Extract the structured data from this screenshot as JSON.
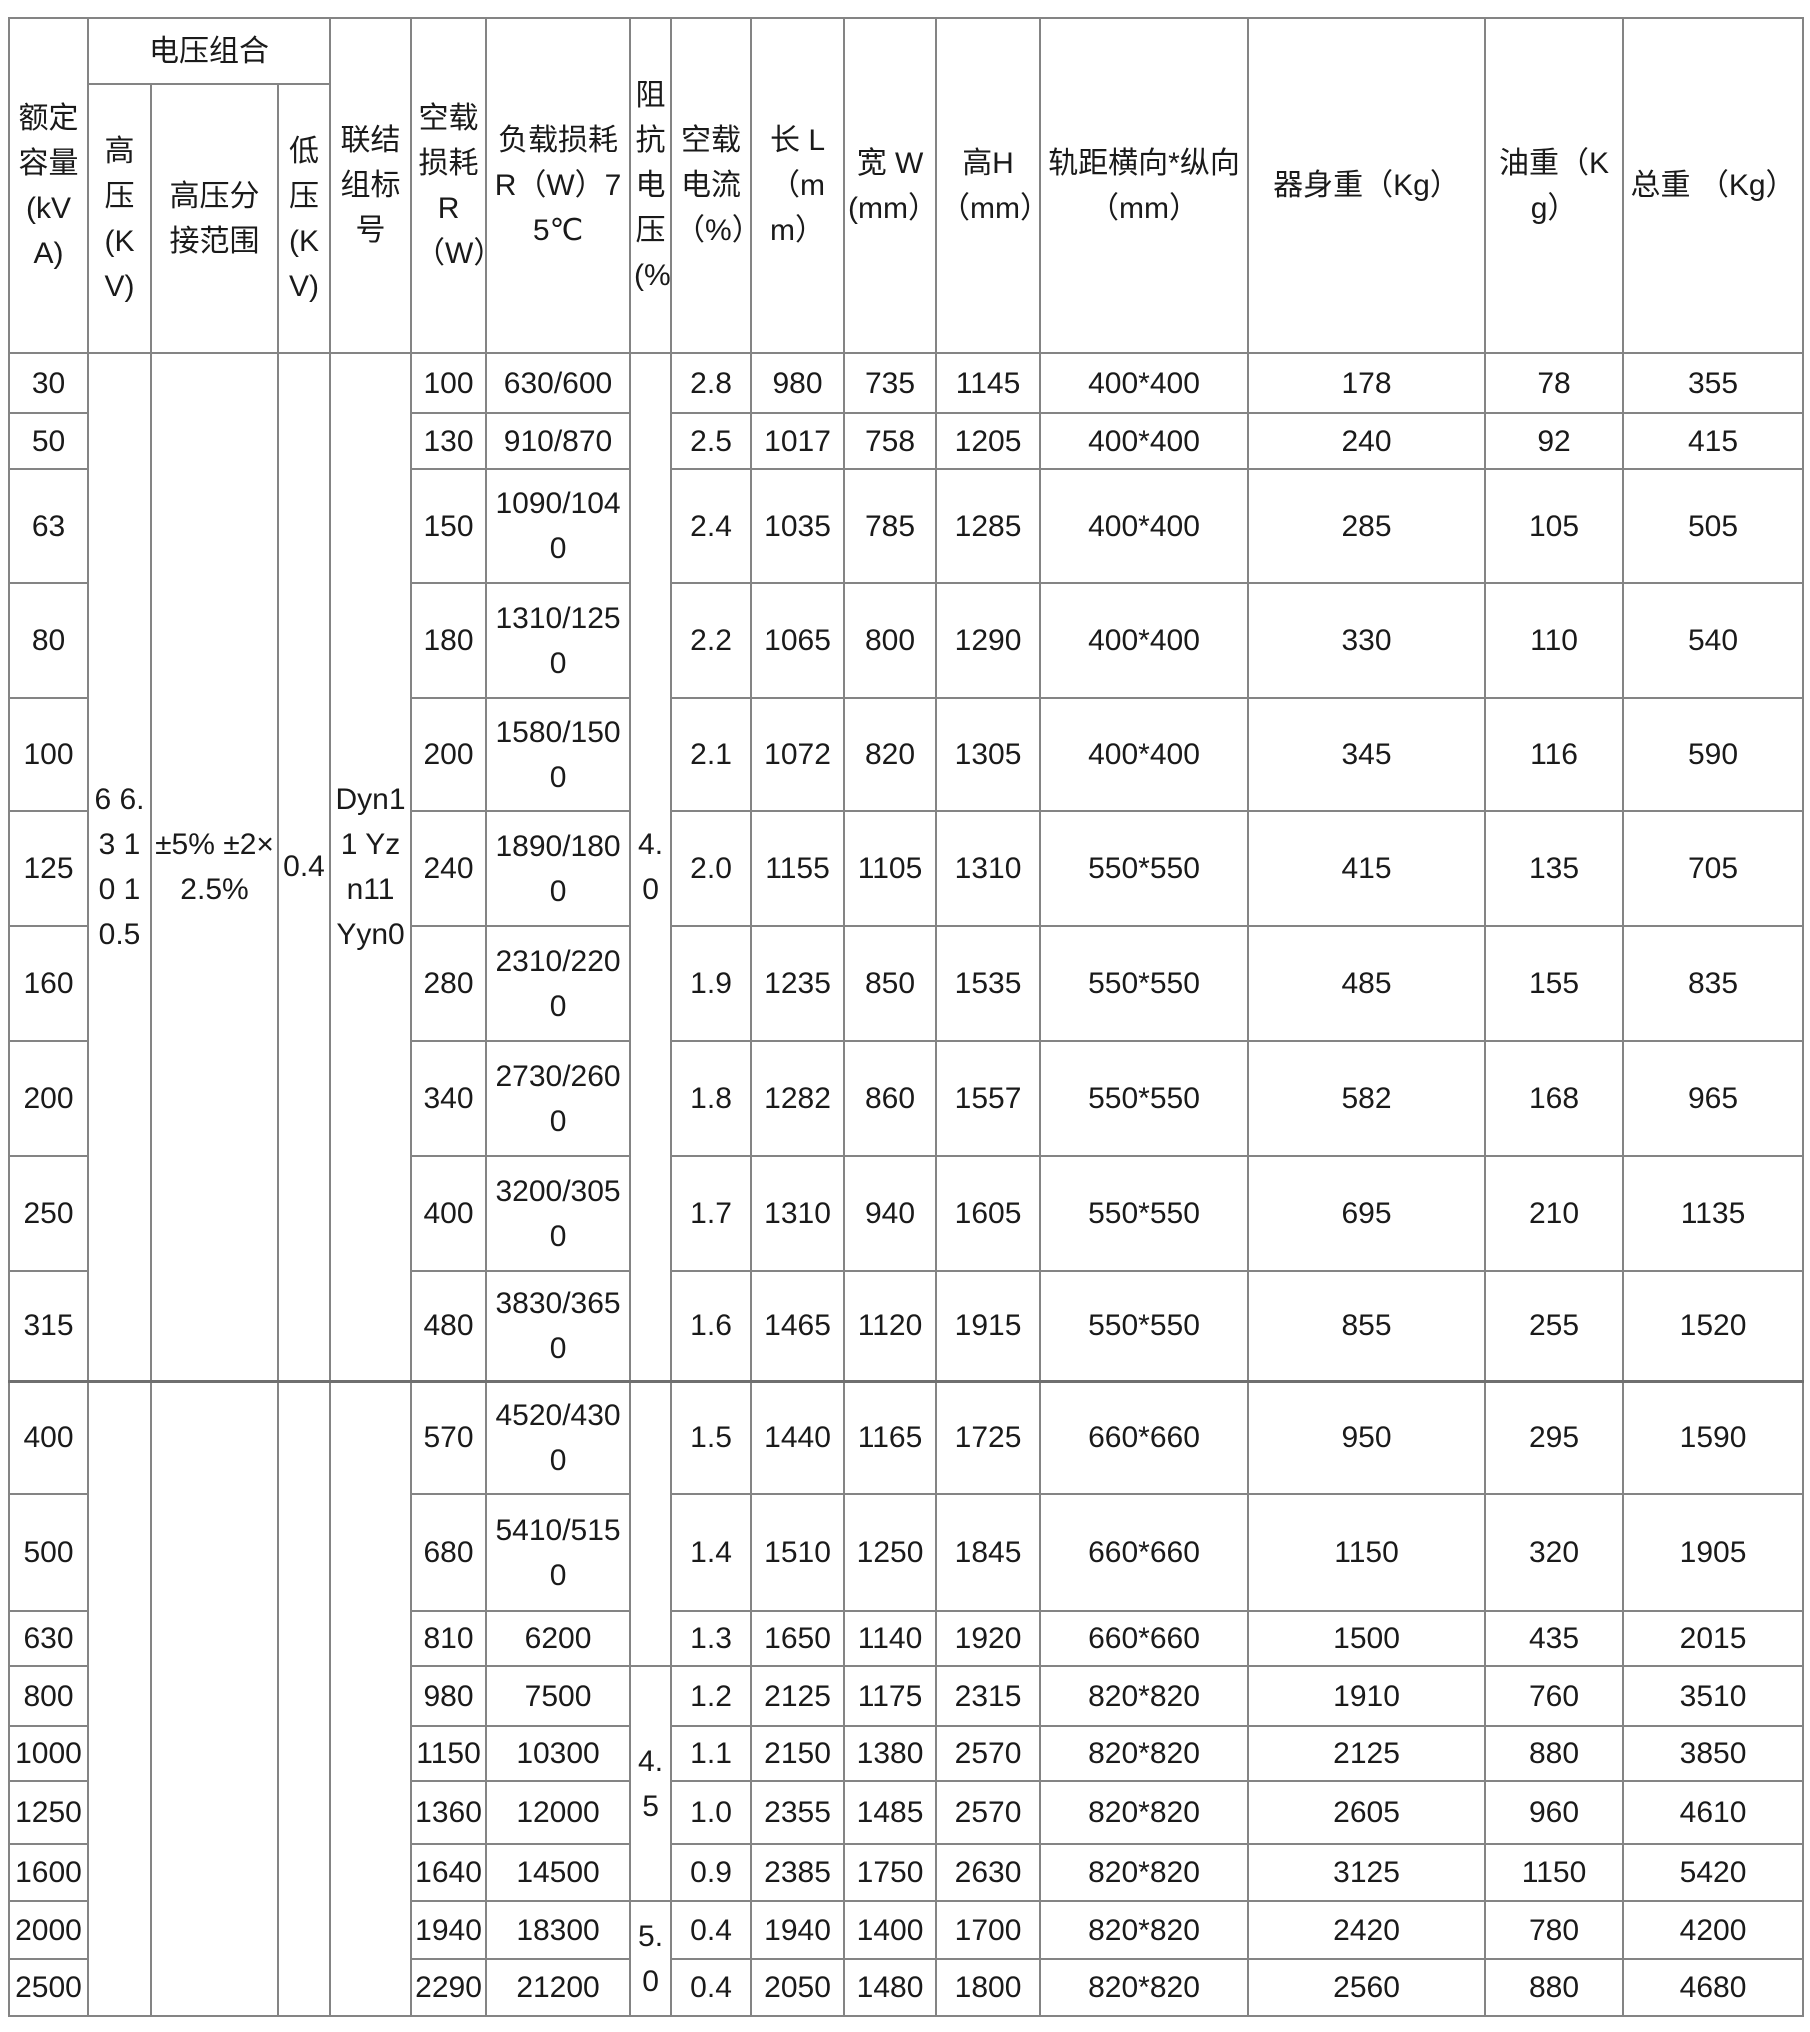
{
  "table": {
    "header": {
      "capacity": "额定容量(kVA)",
      "voltage_group": "电压组合",
      "hv": "高压(KV)",
      "hv_tap_range": "高压分接范围",
      "lv": "低压(KV)",
      "vector_group": "联结组标号",
      "no_load_loss": "空载损耗R（W）",
      "load_loss": "负载损耗 R（W）75℃",
      "impedance_voltage": "阻抗电压(%)",
      "no_load_current": "空载电流（%）",
      "length": "长 L（mm）",
      "width": "宽 W(mm）",
      "height": "高H（mm）",
      "rail_gauge": "轨距横向*纵向（mm）",
      "body_weight": "器身重（Kg）",
      "oil_weight": "油重（Kg）",
      "total_weight": "总重 （Kg）"
    },
    "row_groups": [
      {
        "rows": 10,
        "hv": "6 6.3 10 10.5",
        "tap_range": "±5% ±2×2.5%",
        "lv": "0.4",
        "vector": "Dyn11 Yzn11 Yyn0"
      },
      {
        "rows": 9,
        "hv": "",
        "tap_range": "",
        "lv": "",
        "vector": ""
      }
    ],
    "impedance_spans": [
      {
        "rows": 10,
        "value": "4.0"
      },
      {
        "rows": 3,
        "value": ""
      },
      {
        "rows": 4,
        "value": "4.5"
      },
      {
        "rows": 2,
        "value": "5.0"
      }
    ],
    "rows": [
      [
        "30",
        "100",
        "630/600",
        "2.8",
        "980",
        "735",
        "1145",
        "400*400",
        "178",
        "78",
        "355"
      ],
      [
        "50",
        "130",
        "910/870",
        "2.5",
        "1017",
        "758",
        "1205",
        "400*400",
        "240",
        "92",
        "415"
      ],
      [
        "63",
        "150",
        "1090/1040",
        "2.4",
        "1035",
        "785",
        "1285",
        "400*400",
        "285",
        "105",
        "505"
      ],
      [
        "80",
        "180",
        "1310/1250",
        "2.2",
        "1065",
        "800",
        "1290",
        "400*400",
        "330",
        "110",
        "540"
      ],
      [
        "100",
        "200",
        "1580/1500",
        "2.1",
        "1072",
        "820",
        "1305",
        "400*400",
        "345",
        "116",
        "590"
      ],
      [
        "125",
        "240",
        "1890/1800",
        "2.0",
        "1155",
        "1105",
        "1310",
        "550*550",
        "415",
        "135",
        "705"
      ],
      [
        "160",
        "280",
        "2310/2200",
        "1.9",
        "1235",
        "850",
        "1535",
        "550*550",
        "485",
        "155",
        "835"
      ],
      [
        "200",
        "340",
        "2730/2600",
        "1.8",
        "1282",
        "860",
        "1557",
        "550*550",
        "582",
        "168",
        "965"
      ],
      [
        "250",
        "400",
        "3200/3050",
        "1.7",
        "1310",
        "940",
        "1605",
        "550*550",
        "695",
        "210",
        "1135"
      ],
      [
        "315",
        "480",
        "3830/3650",
        "1.6",
        "1465",
        "1120",
        "1915",
        "550*550",
        "855",
        "255",
        "1520"
      ],
      [
        "400",
        "570",
        "4520/4300",
        "1.5",
        "1440",
        "1165",
        "1725",
        "660*660",
        "950",
        "295",
        "1590"
      ],
      [
        "500",
        "680",
        "5410/5150",
        "1.4",
        "1510",
        "1250",
        "1845",
        "660*660",
        "1150",
        "320",
        "1905"
      ],
      [
        "630",
        "810",
        "6200",
        "1.3",
        "1650",
        "1140",
        "1920",
        "660*660",
        "1500",
        "435",
        "2015"
      ],
      [
        "800",
        "980",
        "7500",
        "1.2",
        "2125",
        "1175",
        "2315",
        "820*820",
        "1910",
        "760",
        "3510"
      ],
      [
        "1000",
        "1150",
        "10300",
        "1.1",
        "2150",
        "1380",
        "2570",
        "820*820",
        "2125",
        "880",
        "3850"
      ],
      [
        "1250",
        "1360",
        "12000",
        "1.0",
        "2355",
        "1485",
        "2570",
        "820*820",
        "2605",
        "960",
        "4610"
      ],
      [
        "1600",
        "1640",
        "14500",
        "0.9",
        "2385",
        "1750",
        "2630",
        "820*820",
        "3125",
        "1150",
        "5420"
      ],
      [
        "2000",
        "1940",
        "18300",
        "0.4",
        "1940",
        "1400",
        "1700",
        "820*820",
        "2420",
        "780",
        "4200"
      ],
      [
        "2500",
        "2290",
        "21200",
        "0.4",
        "2050",
        "1480",
        "1800",
        "820*820",
        "2560",
        "880",
        "4680"
      ]
    ]
  }
}
